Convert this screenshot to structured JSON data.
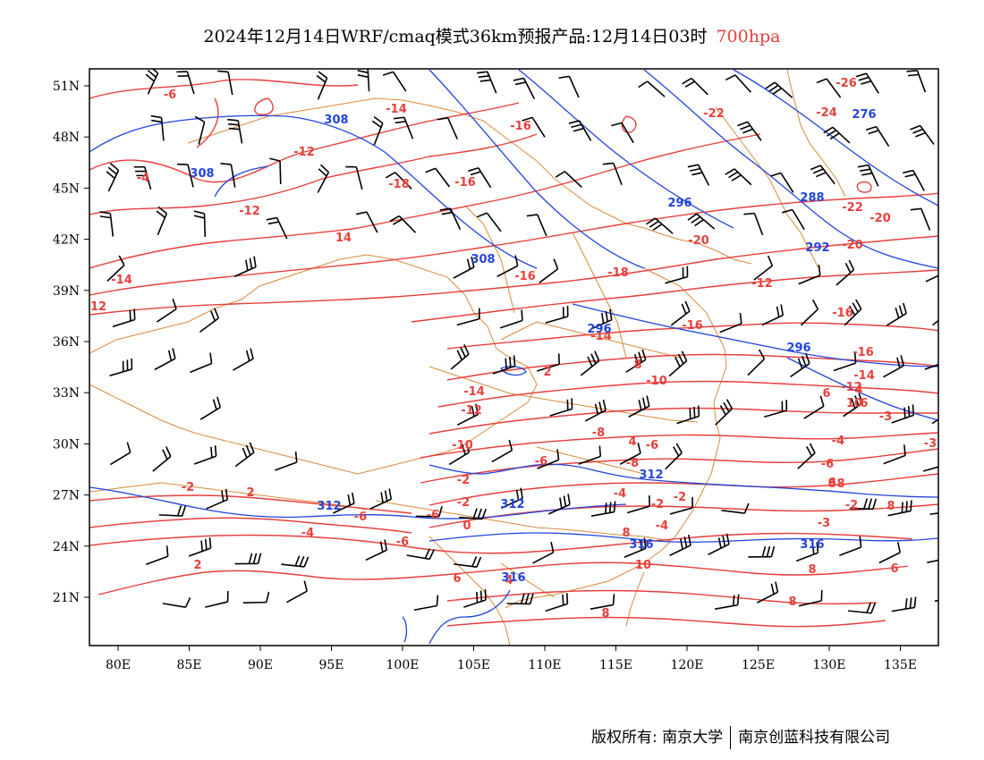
{
  "header": {
    "title": "2024年12月14日WRF/cmaq模式36km预报产品:12月14日03时",
    "level": "700hpa"
  },
  "axes": {
    "lat_labels": [
      "51N",
      "48N",
      "45N",
      "42N",
      "39N",
      "36N",
      "33N",
      "30N",
      "27N",
      "24N",
      "21N"
    ],
    "lon_labels": [
      "80E",
      "85E",
      "90E",
      "95E",
      "100E",
      "105E",
      "110E",
      "115E",
      "120E",
      "125E",
      "130E",
      "135E"
    ]
  },
  "colors": {
    "temperature": "#e8403c",
    "geopotential": "#2244dd",
    "wind_barb": "#000000",
    "borders": "#d98a3a"
  },
  "temperature_labels": [
    "-6",
    "-14",
    "-16",
    "-16",
    "-22",
    "-24",
    "-26",
    "-12",
    "-4",
    "-12",
    "-18",
    "-16",
    "-22",
    "-20",
    "14",
    "-20",
    "-20",
    "-14",
    "-18",
    "-16",
    "-12",
    "12",
    "-14",
    "-16",
    "-16",
    "-14",
    "-12",
    "-10",
    "-14",
    "-12",
    "-10",
    "-8",
    "-6",
    "-4",
    "-2",
    "-8",
    "-6",
    "-4",
    "-2",
    "0",
    "-2",
    "-2",
    "-3",
    "-4",
    "-2",
    "2",
    "-6",
    "-4",
    "-6",
    "2",
    "6",
    "4",
    "8",
    "8",
    "10",
    "8",
    "8",
    "6",
    "8",
    "4",
    "6",
    "10",
    "6",
    "8",
    "8",
    "6",
    "8",
    "2",
    "4",
    "-2",
    "-6",
    "-6",
    "-3",
    "-3"
  ],
  "height_labels": [
    "308",
    "308",
    "276",
    "296",
    "288",
    "292",
    "308",
    "296",
    "296",
    "312",
    "312",
    "312",
    "316",
    "316",
    "316"
  ],
  "footer": {
    "copyright": "版权所有: 南京大学",
    "company": "南京创蓝科技有限公司"
  }
}
